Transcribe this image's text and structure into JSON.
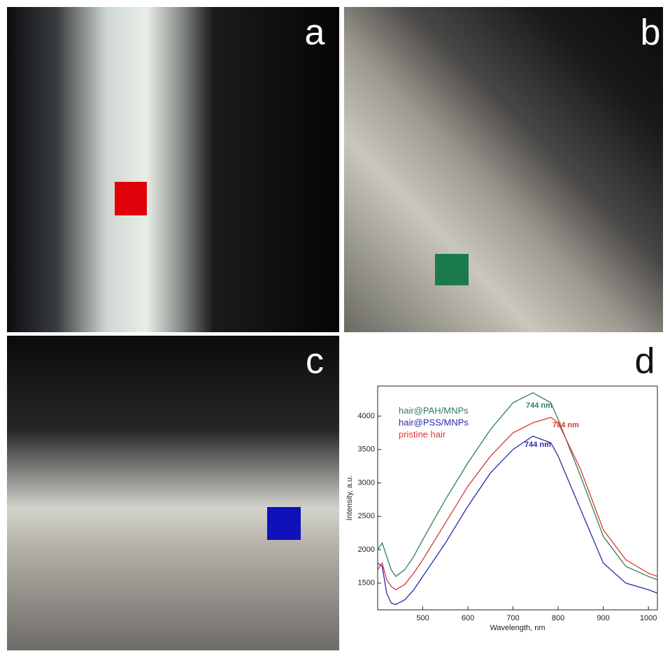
{
  "panel_labels": [
    "a",
    "b",
    "c",
    "d"
  ],
  "chart_data": {
    "type": "line",
    "xlabel": "Wavelength, nm",
    "ylabel": "Intensity, a.u.",
    "x": [
      400,
      410,
      420,
      430,
      440,
      460,
      480,
      500,
      550,
      600,
      650,
      700,
      744,
      784,
      800,
      850,
      900,
      950,
      1000,
      1020
    ],
    "series": [
      {
        "name": "hair@PAH/MNPs",
        "color": "#2e7d5b",
        "values": [
          2000,
          2100,
          1900,
          1700,
          1600,
          1700,
          1900,
          2150,
          2750,
          3300,
          3800,
          4200,
          4350,
          4200,
          3950,
          3100,
          2200,
          1750,
          1600,
          1550
        ]
      },
      {
        "name": "hair@PSS/MNPs",
        "color": "#2a2aa8",
        "values": [
          1800,
          1750,
          1350,
          1200,
          1180,
          1250,
          1400,
          1600,
          2100,
          2650,
          3150,
          3500,
          3700,
          3600,
          3400,
          2600,
          1800,
          1500,
          1400,
          1350
        ]
      },
      {
        "name": "pristine hair",
        "color": "#d93a30",
        "values": [
          1700,
          1800,
          1550,
          1450,
          1400,
          1480,
          1650,
          1850,
          2400,
          2950,
          3400,
          3750,
          3900,
          3980,
          3900,
          3200,
          2300,
          1850,
          1650,
          1600
        ]
      }
    ],
    "annotations": [
      {
        "text": "744 nm",
        "color": "#2e7d5b"
      },
      {
        "text": "784 nm",
        "color": "#d93a30"
      },
      {
        "text": "744 nm",
        "color": "#2a2aa8"
      }
    ],
    "xlim": [
      400,
      1020
    ],
    "xticks": [
      500,
      600,
      700,
      800,
      900,
      1000
    ],
    "ylim": [
      1100,
      4450
    ],
    "yticks": [
      1500,
      2000,
      2500,
      3000,
      3500,
      4000
    ],
    "legend": "upper left"
  }
}
